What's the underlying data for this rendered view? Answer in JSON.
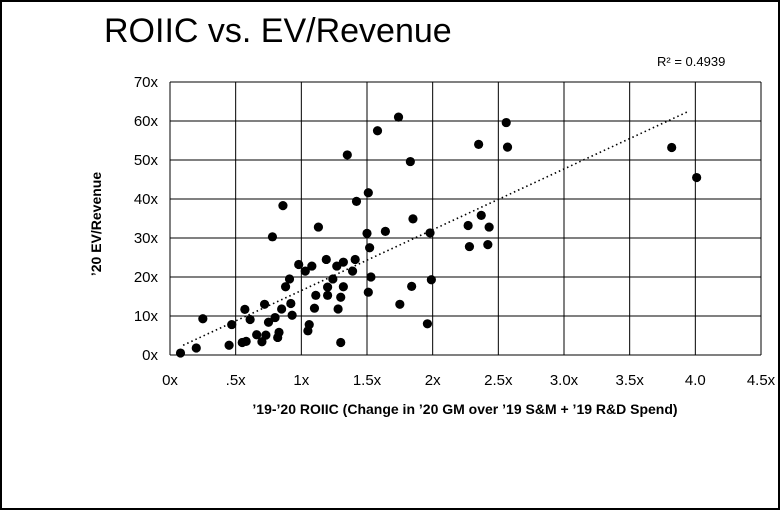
{
  "chart_data": {
    "type": "scatter",
    "title": "ROIIC vs. EV/Revenue",
    "annotation": "R² = 0.4939",
    "xlabel": "’19-’20 ROIIC (Change in ’20 GM over ’19 S&M + ’19 R&D Spend)",
    "ylabel": "’20 EV/Revenue",
    "xlim": [
      0,
      4.5
    ],
    "ylim": [
      0,
      70
    ],
    "grid": true,
    "x_ticks": [
      {
        "value": 0,
        "label": "0x"
      },
      {
        "value": 0.5,
        "label": ".5x"
      },
      {
        "value": 1,
        "label": "1x"
      },
      {
        "value": 1.5,
        "label": "1.5x"
      },
      {
        "value": 2,
        "label": "2x"
      },
      {
        "value": 2.5,
        "label": "2.5x"
      },
      {
        "value": 3,
        "label": "3.0x"
      },
      {
        "value": 3.5,
        "label": "3.5x"
      },
      {
        "value": 4,
        "label": "4.0"
      },
      {
        "value": 4.5,
        "label": "4.5x"
      }
    ],
    "y_ticks": [
      {
        "value": 0,
        "label": "0x"
      },
      {
        "value": 10,
        "label": "10x"
      },
      {
        "value": 20,
        "label": "20x"
      },
      {
        "value": 30,
        "label": "30x"
      },
      {
        "value": 40,
        "label": "40x"
      },
      {
        "value": 50,
        "label": "50x"
      },
      {
        "value": 60,
        "label": "60x"
      },
      {
        "value": 70,
        "label": "70x"
      }
    ],
    "trendline": {
      "style": "dotted",
      "x": [
        0.1,
        3.95
      ],
      "y": [
        2.5,
        62.5
      ]
    },
    "points": [
      [
        0.08,
        0.5
      ],
      [
        0.2,
        1.8
      ],
      [
        0.25,
        9.3
      ],
      [
        0.45,
        2.5
      ],
      [
        0.47,
        7.8
      ],
      [
        0.55,
        3.2
      ],
      [
        0.57,
        11.7
      ],
      [
        0.58,
        3.5
      ],
      [
        0.61,
        9.1
      ],
      [
        0.66,
        5.2
      ],
      [
        0.7,
        3.4
      ],
      [
        0.72,
        13.0
      ],
      [
        0.73,
        5.1
      ],
      [
        0.75,
        8.4
      ],
      [
        0.78,
        30.3
      ],
      [
        0.8,
        9.6
      ],
      [
        0.82,
        4.5
      ],
      [
        0.83,
        5.8
      ],
      [
        0.85,
        11.8
      ],
      [
        0.86,
        38.3
      ],
      [
        0.88,
        17.5
      ],
      [
        0.91,
        19.5
      ],
      [
        0.92,
        13.2
      ],
      [
        0.93,
        10.2
      ],
      [
        0.98,
        23.2
      ],
      [
        1.03,
        21.5
      ],
      [
        1.05,
        6.2
      ],
      [
        1.06,
        7.8
      ],
      [
        1.08,
        22.8
      ],
      [
        1.1,
        12.0
      ],
      [
        1.11,
        15.3
      ],
      [
        1.13,
        32.8
      ],
      [
        1.19,
        24.5
      ],
      [
        1.2,
        17.4
      ],
      [
        1.2,
        15.3
      ],
      [
        1.24,
        19.5
      ],
      [
        1.27,
        22.8
      ],
      [
        1.28,
        11.8
      ],
      [
        1.3,
        14.8
      ],
      [
        1.3,
        3.2
      ],
      [
        1.32,
        23.8
      ],
      [
        1.32,
        17.5
      ],
      [
        1.35,
        51.3
      ],
      [
        1.39,
        21.5
      ],
      [
        1.41,
        24.5
      ],
      [
        1.42,
        39.4
      ],
      [
        1.5,
        31.2
      ],
      [
        1.51,
        41.6
      ],
      [
        1.51,
        16.1
      ],
      [
        1.52,
        27.5
      ],
      [
        1.53,
        20.0
      ],
      [
        1.58,
        57.5
      ],
      [
        1.64,
        31.7
      ],
      [
        1.74,
        61.0
      ],
      [
        1.75,
        13.0
      ],
      [
        1.83,
        49.6
      ],
      [
        1.84,
        17.6
      ],
      [
        1.85,
        34.9
      ],
      [
        1.96,
        8.0
      ],
      [
        1.98,
        31.3
      ],
      [
        1.99,
        19.3
      ],
      [
        2.27,
        33.2
      ],
      [
        2.28,
        27.8
      ],
      [
        2.35,
        54.0
      ],
      [
        2.37,
        35.8
      ],
      [
        2.42,
        28.3
      ],
      [
        2.43,
        32.8
      ],
      [
        2.56,
        59.6
      ],
      [
        2.57,
        53.3
      ],
      [
        3.82,
        53.2
      ],
      [
        4.01,
        45.5
      ]
    ]
  }
}
